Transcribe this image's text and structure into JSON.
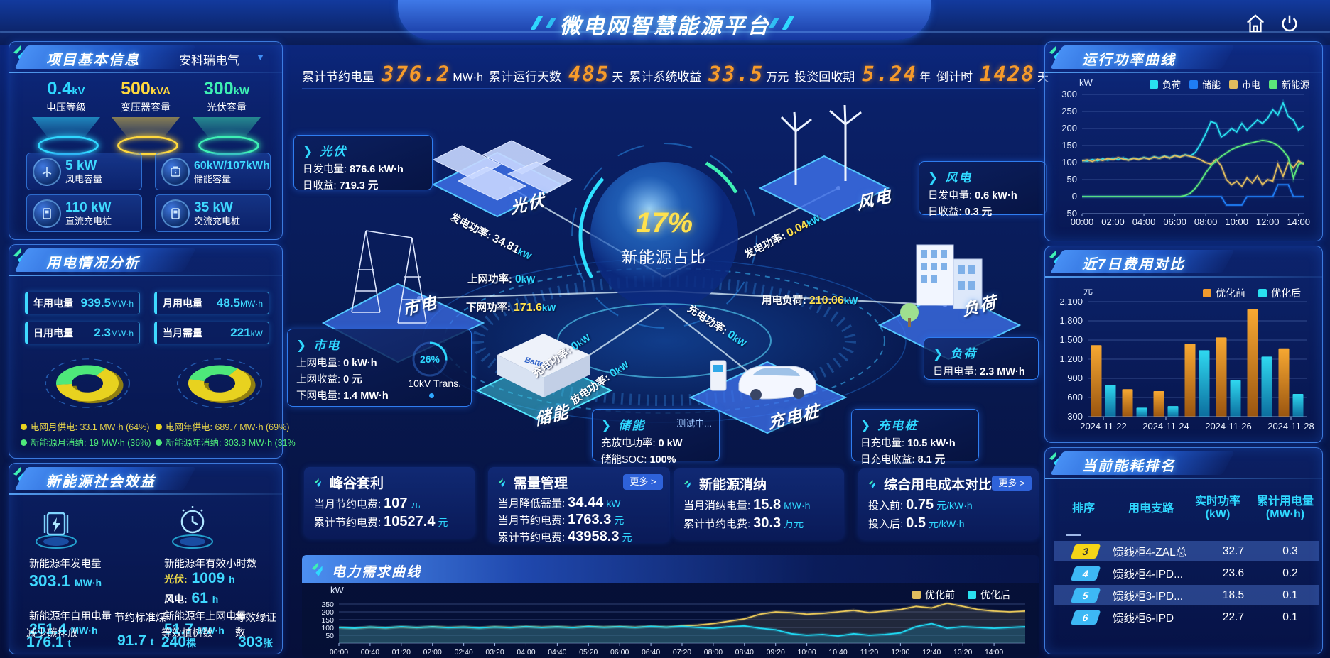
{
  "header": {
    "title": "微电网智慧能源平台"
  },
  "top_stats": [
    {
      "label": "累计节约电量",
      "value": "376.2",
      "unit": "MW·h"
    },
    {
      "label": "累计运行天数",
      "value": "485",
      "unit": "天"
    },
    {
      "label": "累计系统收益",
      "value": "33.5",
      "unit": "万元"
    },
    {
      "label": "投资回收期",
      "value": "5.24",
      "unit": "年"
    },
    {
      "label": "倒计时",
      "value": "1428",
      "unit": "天"
    }
  ],
  "project_info": {
    "title": "项目基本信息",
    "company": "安科瑞电气",
    "gauges": [
      {
        "value": "0.4",
        "unit": "kV",
        "label": "电压等级",
        "color": "#2fd8ff"
      },
      {
        "value": "500",
        "unit": "kVA",
        "label": "变压器容量",
        "color": "#ffd83d"
      },
      {
        "value": "300",
        "unit": "kW",
        "label": "光伏容量",
        "color": "#3ef0b4"
      }
    ],
    "cards": [
      {
        "value": "5 kW",
        "label": "风电容量"
      },
      {
        "value": "60kW/107kWh",
        "label": "储能容量"
      },
      {
        "value": "110 kW",
        "label": "直流充电桩"
      },
      {
        "value": "35 kW",
        "label": "交流充电桩"
      }
    ]
  },
  "power_usage": {
    "title": "用电情况分析",
    "stats": [
      {
        "label": "年用电量",
        "value": "939.5",
        "unit": "MW·h"
      },
      {
        "label": "月用电量",
        "value": "48.5",
        "unit": "MW·h"
      },
      {
        "label": "日用电量",
        "value": "2.3",
        "unit": "MW·h"
      },
      {
        "label": "当月需量",
        "value": "221",
        "unit": "kW"
      }
    ],
    "month_donut": {
      "grid_pct": 64,
      "legend": [
        {
          "label": "电网月供电:",
          "value": "33.1 MW·h (64%)"
        },
        {
          "label": "新能源月消纳:",
          "value": "19 MW·h (36%)"
        }
      ]
    },
    "year_donut": {
      "grid_pct": 69,
      "legend": [
        {
          "label": "电网年供电:",
          "value": "689.7 MW·h (69%)"
        },
        {
          "label": "新能源年消纳:",
          "value": "303.8 MW·h (31%"
        }
      ]
    }
  },
  "social": {
    "title": "新能源社会效益",
    "gen": {
      "label": "新能源年发电量",
      "value": "303.1",
      "unit": "MW·h"
    },
    "hours": {
      "label": "新能源年有效小时数",
      "pv_label": "光伏:",
      "pv_value": "1009",
      "pv_unit": "h",
      "wind_label": "风电:",
      "wind_value": "61",
      "wind_unit": "h"
    },
    "self_use": {
      "label": "新能源年自用电量",
      "value": "251.4",
      "unit": "MW·h"
    },
    "to_grid": {
      "label": "新能源年上网电量",
      "value": "51.7",
      "unit": "MW·h"
    },
    "co2": {
      "label": "减少碳排放",
      "value": "176.1",
      "unit": "t"
    },
    "coal": {
      "label": "节约标准煤",
      "value": "91.7",
      "unit": "t"
    },
    "trees": {
      "label": "等效植树数",
      "value": "240",
      "unit": "棵"
    },
    "certs": {
      "label": "等效绿证数",
      "value": "303",
      "unit": "张"
    }
  },
  "center": {
    "core": {
      "pct": "17%",
      "label": "新能源占比"
    },
    "nodes": {
      "pv": "光伏",
      "wind": "风电",
      "grid": "市电",
      "load": "负荷",
      "storage": "储能",
      "charger": "充电桩"
    },
    "pv_info": {
      "title": "光伏",
      "r1l": "日发电量:",
      "r1v": "876.6 kW·h",
      "r2l": "日收益:",
      "r2v": "719.3 元"
    },
    "wind_info": {
      "title": "风电",
      "r1l": "日发电量:",
      "r1v": "0.6 kW·h",
      "r2l": "日收益:",
      "r2v": "0.3 元"
    },
    "grid_info": {
      "title": "市电",
      "r1l": "上网电量:",
      "r1v": "0 kW·h",
      "r2l": "上网收益:",
      "r2v": "0 元",
      "r3l": "下网电量:",
      "r3v": "1.4 MW·h",
      "ring_pct": "26%",
      "ring_label": "10kV Trans."
    },
    "load_info": {
      "title": "负荷",
      "r1l": "日用电量:",
      "r1v": "2.3 MW·h"
    },
    "storage_info": {
      "title": "储能",
      "badge": "测试中...",
      "r1l": "充放电功率:",
      "r1v": "0 kW",
      "r2l": "储能SOC:",
      "r2v": "100%"
    },
    "charger_info": {
      "title": "充电桩",
      "r1l": "日充电量:",
      "r1v": "10.5 kW·h",
      "r2l": "日充电收益:",
      "r2v": "8.1 元"
    },
    "flows": {
      "pv_gen": {
        "label": "发电功率:",
        "value": "34.81",
        "unit": "kW"
      },
      "grid_up": {
        "label": "上网功率:",
        "value": "0",
        "unit": "kW"
      },
      "grid_down": {
        "label": "下网功率:",
        "value": "171.6",
        "unit": "kW"
      },
      "wind_gen": {
        "label": "发电功率:",
        "value": "0.04",
        "unit": "kW"
      },
      "load_power": {
        "label": "用电负荷:",
        "value": "210.06",
        "unit": "kW"
      },
      "charge": {
        "label": "充电功率:",
        "value": "0",
        "unit": "kW"
      },
      "discharge": {
        "label": "放电功率:",
        "value": "0",
        "unit": "kW"
      },
      "charger_in": {
        "label": "充电功率:",
        "value": "0",
        "unit": "kW"
      }
    }
  },
  "benefit_cards": {
    "peak_valley": {
      "title": "峰谷套利",
      "rows": [
        {
          "label": "当月节约电费:",
          "value": "107",
          "unit": "元"
        },
        {
          "label": "累计节约电费:",
          "value": "10527.4",
          "unit": "元"
        }
      ]
    },
    "demand": {
      "title": "需量管理",
      "more": "更多 >",
      "rows": [
        {
          "label": "当月降低需量:",
          "value": "34.44",
          "unit": "kW"
        },
        {
          "label": "当月节约电费:",
          "value": "1763.3",
          "unit": "元"
        },
        {
          "label": "累计节约电费:",
          "value": "43958.3",
          "unit": "元"
        }
      ]
    },
    "renewable": {
      "title": "新能源消纳",
      "rows": [
        {
          "label": "当月消纳电量:",
          "value": "15.8",
          "unit": "MW·h"
        },
        {
          "label": "累计节约电费:",
          "value": "30.3",
          "unit": "万元"
        }
      ]
    },
    "cost_compare": {
      "title": "综合用电成本对比",
      "more": "更多 >",
      "rows": [
        {
          "label": "投入前:",
          "value": "0.75",
          "unit": "元/kW·h"
        },
        {
          "label": "投入后:",
          "value": "0.5",
          "unit": "元/kW·h"
        }
      ]
    }
  },
  "ranking": {
    "title": "当前能耗排名",
    "headers": {
      "rank": "排序",
      "branch": "用电支路",
      "power1": "实时功率",
      "power2": "(kW)",
      "energy1": "累计用电量",
      "energy2": "(MW·h)"
    },
    "rows": [
      {
        "rank": "3",
        "branch": "馈线柜4-ZAL总",
        "power": "32.7",
        "energy": "0.3"
      },
      {
        "rank": "4",
        "branch": "馈线柜4-IPD...",
        "power": "23.6",
        "energy": "0.2"
      },
      {
        "rank": "5",
        "branch": "馈线柜3-IPD...",
        "power": "18.5",
        "energy": "0.1"
      },
      {
        "rank": "6",
        "branch": "馈线柜6-IPD",
        "power": "22.7",
        "energy": "0.1"
      }
    ]
  },
  "chart_data": [
    {
      "id": "run-power",
      "type": "line",
      "title": "运行功率曲线",
      "ylabel": "kW",
      "ylim": [
        -50,
        300
      ],
      "yticks": [
        -50,
        0,
        50,
        100,
        150,
        200,
        250,
        300
      ],
      "xticks": [
        "00:00",
        "02:00",
        "04:00",
        "06:00",
        "08:00",
        "10:00",
        "12:00",
        "14:00"
      ],
      "xtick_interval_min": 120,
      "point_interval_min": 20,
      "legend_position": "top",
      "series": [
        {
          "name": "负荷",
          "color": "#29e0f0",
          "values": [
            106,
            104,
            109,
            105,
            111,
            107,
            113,
            109,
            114,
            108,
            113,
            110,
            115,
            111,
            117,
            113,
            119,
            114,
            121,
            117,
            123,
            119,
            130,
            155,
            185,
            220,
            215,
            175,
            185,
            200,
            190,
            215,
            195,
            210,
            225,
            215,
            230,
            255,
            240,
            275,
            235,
            225,
            195,
            208
          ]
        },
        {
          "name": "储能",
          "color": "#1f7df5",
          "values": [
            0,
            0,
            0,
            0,
            0,
            0,
            0,
            0,
            0,
            0,
            0,
            0,
            0,
            0,
            0,
            0,
            0,
            0,
            0,
            0,
            0,
            0,
            0,
            0,
            0,
            0,
            0,
            0,
            -25,
            -25,
            -25,
            -25,
            0,
            0,
            0,
            0,
            0,
            0,
            35,
            35,
            35,
            0,
            0,
            0
          ]
        },
        {
          "name": "市电",
          "color": "#e0bc5e",
          "values": [
            105,
            108,
            103,
            110,
            106,
            112,
            108,
            115,
            110,
            107,
            112,
            109,
            114,
            110,
            116,
            112,
            118,
            113,
            120,
            116,
            122,
            118,
            115,
            108,
            100,
            95,
            110,
            90,
            50,
            35,
            45,
            30,
            55,
            40,
            60,
            35,
            50,
            45,
            95,
            60,
            100,
            85,
            105,
            95
          ]
        },
        {
          "name": "新能源",
          "color": "#5ce87a",
          "values": [
            0,
            0,
            0,
            0,
            0,
            0,
            0,
            0,
            0,
            0,
            0,
            0,
            0,
            0,
            0,
            0,
            0,
            0,
            0,
            0,
            3,
            10,
            25,
            45,
            70,
            90,
            105,
            118,
            128,
            138,
            145,
            150,
            155,
            158,
            162,
            165,
            163,
            158,
            150,
            135,
            115,
            55,
            95,
            100
          ]
        }
      ]
    },
    {
      "id": "cost-compare",
      "type": "bar",
      "title": "近7日费用对比",
      "ylabel": "元",
      "ylim": [
        300,
        2100
      ],
      "yticks": [
        300,
        600,
        900,
        1200,
        1500,
        1800,
        2100
      ],
      "ytick_labels": [
        "300",
        "600",
        "900",
        "1,200",
        "1,500",
        "1,800",
        "2,100"
      ],
      "categories": [
        "2024-11-22",
        "2024-11-23",
        "2024-11-24",
        "2024-11-25",
        "2024-11-26",
        "2024-11-27",
        "2024-11-28"
      ],
      "xtick_indices": [
        0,
        2,
        4,
        6
      ],
      "legend_position": "top-right",
      "series": [
        {
          "name": "优化前",
          "color": "#f09a2e",
          "values": [
            1420,
            730,
            700,
            1440,
            1540,
            1980,
            1370
          ]
        },
        {
          "name": "优化后",
          "color": "#19c8e8",
          "values": [
            800,
            440,
            465,
            1340,
            870,
            1240,
            655
          ]
        }
      ]
    },
    {
      "id": "demand-curve",
      "type": "line",
      "title": "电力需求曲线",
      "ylabel": "kW",
      "ylim": [
        0,
        300
      ],
      "yticks": [
        50,
        100,
        150,
        200,
        250
      ],
      "xticks": [
        "00:00",
        "00:40",
        "01:20",
        "02:00",
        "02:40",
        "03:20",
        "04:00",
        "04:40",
        "05:20",
        "06:00",
        "06:40",
        "07:20",
        "08:00",
        "08:40",
        "09:20",
        "10:00",
        "10:40",
        "11:20",
        "12:00",
        "12:40",
        "13:20",
        "14:00"
      ],
      "xtick_interval_min": 40,
      "point_interval_min": 20,
      "legend_position": "top-right",
      "series": [
        {
          "name": "优化前",
          "color": "#e8c75a",
          "fill": "rgba(120,110,80,0.25)",
          "values": [
            100,
            95,
            102,
            97,
            104,
            99,
            105,
            100,
            103,
            98,
            104,
            100,
            106,
            101,
            105,
            100,
            107,
            102,
            106,
            101,
            108,
            103,
            110,
            115,
            125,
            140,
            155,
            185,
            200,
            195,
            185,
            190,
            200,
            210,
            195,
            205,
            215,
            235,
            225,
            255,
            235,
            215,
            205,
            200,
            205
          ]
        },
        {
          "name": "优化后",
          "color": "#1fd6f0",
          "fill": "rgba(30,160,200,0.25)",
          "values": [
            100,
            96,
            103,
            98,
            105,
            100,
            104,
            99,
            102,
            97,
            103,
            99,
            105,
            100,
            104,
            99,
            106,
            101,
            105,
            100,
            107,
            102,
            108,
            100,
            95,
            105,
            110,
            95,
            85,
            60,
            50,
            55,
            45,
            60,
            50,
            55,
            65,
            105,
            125,
            95,
            105,
            100,
            95,
            100,
            105
          ]
        }
      ]
    }
  ]
}
